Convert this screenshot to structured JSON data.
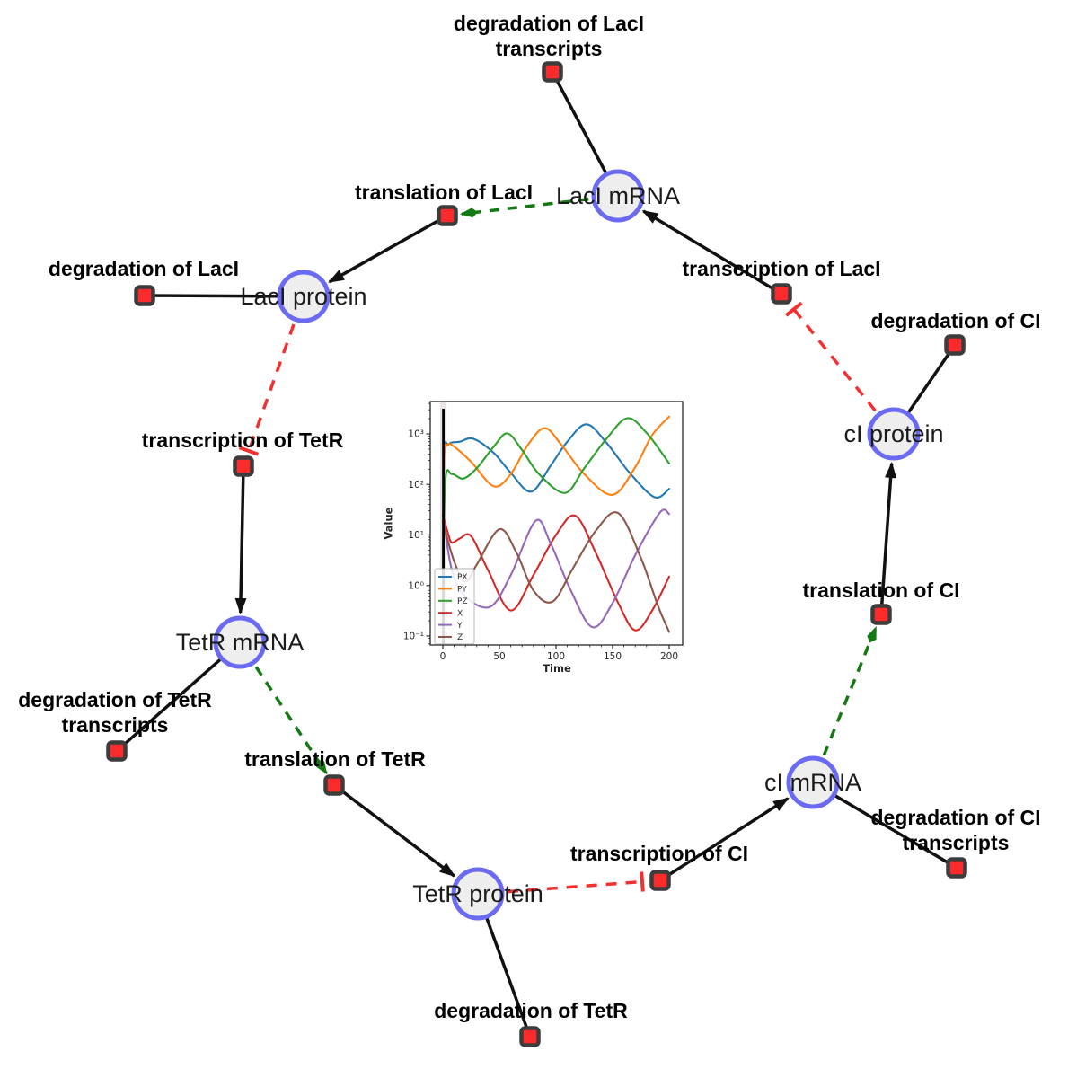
{
  "network": {
    "colors": {
      "species_fill": "#eeeeef",
      "species_border": "#6a6af2",
      "reaction_fill": "#fb2b2b",
      "reaction_border": "#3c3c3c",
      "default_edge": "#111111",
      "activation_edge": "#157815",
      "inhibition_edge": "#f23030"
    },
    "species_nodes": [
      {
        "label": "LacI mRNA"
      },
      {
        "label": "LacI protein"
      },
      {
        "label": "TetR mRNA"
      },
      {
        "label": "TetR protein"
      },
      {
        "label": "cI mRNA"
      },
      {
        "label": "cI protein"
      }
    ],
    "reaction_nodes": [
      {
        "lines": [
          "degradation of LacI",
          "transcripts"
        ]
      },
      {
        "lines": [
          "translation of LacI"
        ]
      },
      {
        "lines": [
          "transcription of LacI"
        ]
      },
      {
        "lines": [
          "degradation of LacI"
        ]
      },
      {
        "lines": [
          "degradation of CI"
        ]
      },
      {
        "lines": [
          "transcription of TetR"
        ]
      },
      {
        "lines": [
          "degradation of TetR",
          "transcripts"
        ]
      },
      {
        "lines": [
          "translation of TetR"
        ]
      },
      {
        "lines": [
          "transcription of CI"
        ]
      },
      {
        "lines": [
          "degradation of CI",
          "transcripts"
        ]
      },
      {
        "lines": [
          "translation of CI"
        ]
      },
      {
        "lines": [
          "degradation of TetR"
        ]
      }
    ]
  },
  "chart_data": {
    "type": "line",
    "title": "",
    "xlabel": "Time",
    "ylabel": "Value",
    "x_range": [
      0,
      200
    ],
    "y_scale": "log",
    "y_range": [
      0.1,
      1000
    ],
    "x_ticks": [
      0,
      50,
      100,
      150,
      200
    ],
    "y_ticks": [
      -1,
      0,
      1,
      2,
      3
    ],
    "y_tick_labels": [
      "10⁻¹",
      "10⁰",
      "10¹",
      "10²",
      "10³"
    ],
    "legend_position": "lower left",
    "grid": false,
    "series": [
      {
        "name": "PX",
        "color": "#1f77b4",
        "points": [
          [
            0,
            0.15
          ],
          [
            1,
            300
          ],
          [
            5,
            620
          ],
          [
            15,
            700
          ],
          [
            27,
            800
          ],
          [
            45,
            420
          ],
          [
            60,
            170
          ],
          [
            78,
            72
          ],
          [
            95,
            230
          ],
          [
            110,
            700
          ],
          [
            127,
            1550
          ],
          [
            145,
            650
          ],
          [
            165,
            170
          ],
          [
            187,
            56
          ],
          [
            200,
            82
          ]
        ]
      },
      {
        "name": "PY",
        "color": "#ff7f0e",
        "points": [
          [
            0,
            0.15
          ],
          [
            1,
            250
          ],
          [
            4,
            600
          ],
          [
            10,
            560
          ],
          [
            25,
            280
          ],
          [
            45,
            92
          ],
          [
            60,
            160
          ],
          [
            75,
            600
          ],
          [
            90,
            1300
          ],
          [
            105,
            600
          ],
          [
            125,
            160
          ],
          [
            150,
            62
          ],
          [
            170,
            220
          ],
          [
            185,
            950
          ],
          [
            200,
            2200
          ]
        ]
      },
      {
        "name": "PZ",
        "color": "#2ca02c",
        "points": [
          [
            0,
            0.15
          ],
          [
            2,
            100
          ],
          [
            8,
            160
          ],
          [
            18,
            130
          ],
          [
            30,
            210
          ],
          [
            45,
            560
          ],
          [
            57,
            1020
          ],
          [
            70,
            480
          ],
          [
            85,
            160
          ],
          [
            108,
            68
          ],
          [
            125,
            210
          ],
          [
            145,
            820
          ],
          [
            163,
            2050
          ],
          [
            180,
            1050
          ],
          [
            200,
            260
          ]
        ]
      },
      {
        "name": "X",
        "color": "#d62728",
        "points": [
          [
            0,
            25
          ],
          [
            5,
            10
          ],
          [
            8,
            7
          ],
          [
            15,
            8.5
          ],
          [
            25,
            9.5
          ],
          [
            40,
            2
          ],
          [
            60,
            0.32
          ],
          [
            80,
            1.6
          ],
          [
            100,
            10
          ],
          [
            117,
            24
          ],
          [
            135,
            4.5
          ],
          [
            155,
            0.45
          ],
          [
            170,
            0.13
          ],
          [
            185,
            0.32
          ],
          [
            200,
            1.5
          ]
        ]
      },
      {
        "name": "Y",
        "color": "#9467bd",
        "points": [
          [
            0,
            25
          ],
          [
            8,
            2
          ],
          [
            20,
            0.6
          ],
          [
            42,
            0.38
          ],
          [
            60,
            1.6
          ],
          [
            82,
            19
          ],
          [
            95,
            7
          ],
          [
            112,
            0.9
          ],
          [
            132,
            0.15
          ],
          [
            150,
            0.45
          ],
          [
            170,
            4
          ],
          [
            192,
            28
          ],
          [
            200,
            26
          ]
        ]
      },
      {
        "name": "Z",
        "color": "#8c564b",
        "points": [
          [
            0,
            18
          ],
          [
            10,
            3
          ],
          [
            20,
            1.2
          ],
          [
            30,
            2.6
          ],
          [
            50,
            13
          ],
          [
            65,
            4.5
          ],
          [
            80,
            0.8
          ],
          [
            97,
            0.48
          ],
          [
            115,
            2.2
          ],
          [
            135,
            12
          ],
          [
            155,
            27
          ],
          [
            175,
            3.5
          ],
          [
            190,
            0.4
          ],
          [
            200,
            0.12
          ]
        ]
      }
    ]
  }
}
